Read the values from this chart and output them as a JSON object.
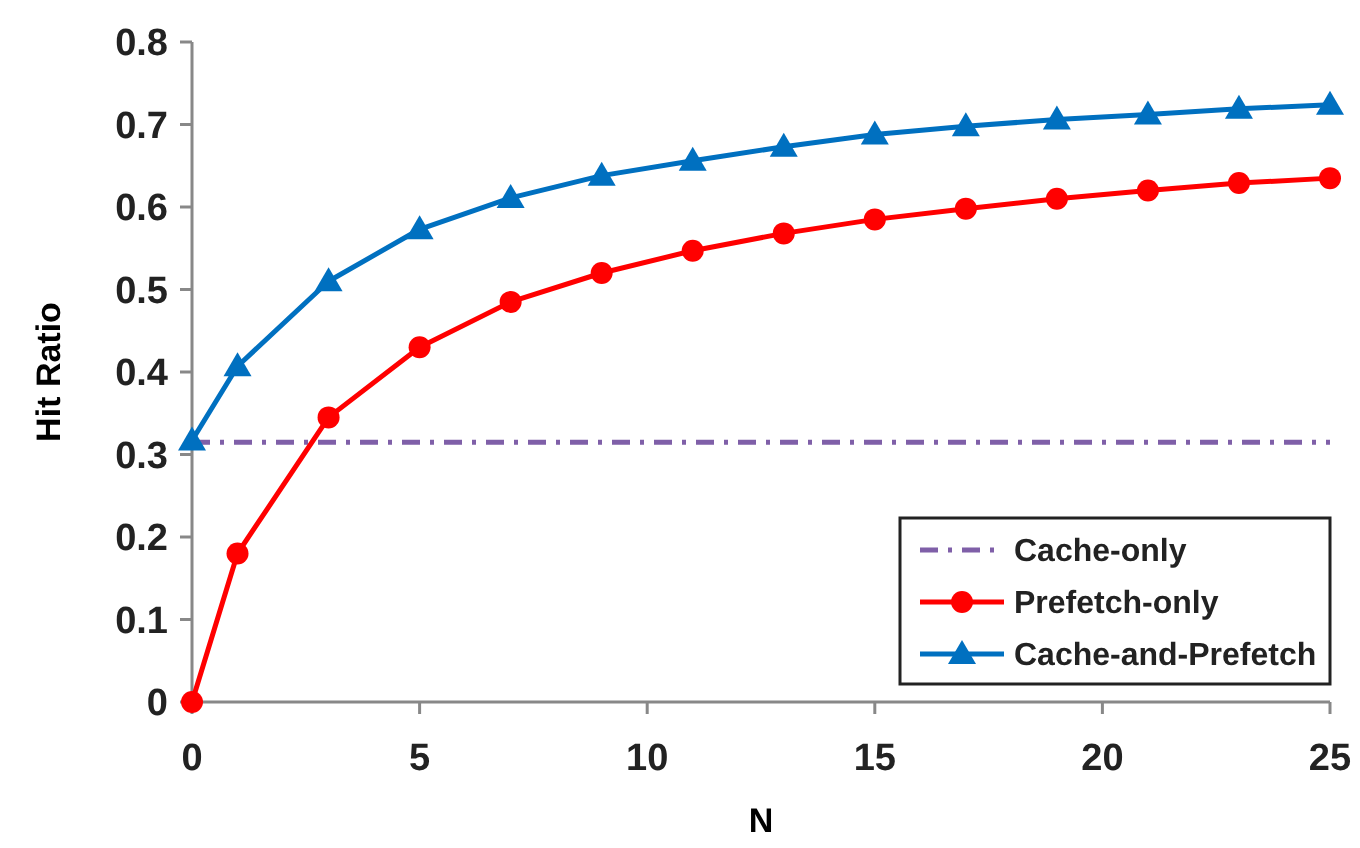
{
  "chart_data": {
    "type": "line",
    "xlabel": "N",
    "ylabel": "Hit Ratio",
    "xlim": [
      0,
      25
    ],
    "xticks": [
      0,
      5,
      10,
      15,
      20,
      25
    ],
    "ylim": [
      0,
      0.8
    ],
    "yticks": [
      0,
      0.1,
      0.2,
      0.3,
      0.4,
      0.5,
      0.6,
      0.7,
      0.8
    ],
    "grid": false,
    "legend": "bottom right",
    "series": [
      {
        "name": "Cache-only",
        "color": "#7f5fa8",
        "x": [
          0,
          25
        ],
        "values": [
          0.315,
          0.315
        ],
        "marker": "none",
        "line_style": "dashdot"
      },
      {
        "name": "Prefetch-only",
        "color": "#ff0000",
        "x": [
          0,
          1,
          3,
          5,
          7,
          9,
          11,
          13,
          15,
          17,
          19,
          21,
          23,
          25
        ],
        "values": [
          0,
          0.18,
          0.345,
          0.43,
          0.485,
          0.52,
          0.547,
          0.568,
          0.585,
          0.598,
          0.61,
          0.62,
          0.629,
          0.635
        ],
        "marker": "circle",
        "line_style": "solid"
      },
      {
        "name": "Cache-and-Prefetch",
        "color": "#0070c0",
        "x": [
          0,
          1,
          3,
          5,
          7,
          9,
          11,
          13,
          15,
          17,
          19,
          21,
          23,
          25
        ],
        "values": [
          0.317,
          0.407,
          0.51,
          0.573,
          0.611,
          0.638,
          0.656,
          0.673,
          0.688,
          0.698,
          0.706,
          0.712,
          0.719,
          0.724
        ],
        "marker": "triangle",
        "line_style": "solid"
      }
    ]
  }
}
